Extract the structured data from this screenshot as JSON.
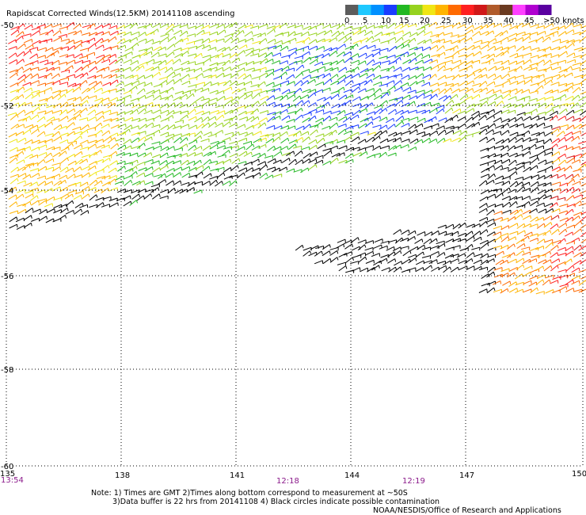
{
  "header": {
    "title": "Rapidscat Corrected Winds(12.5KM) 20141108 ascending"
  },
  "legend": {
    "unit_label": ">50 knots",
    "ticks": [
      "0",
      "5",
      "10",
      "15",
      "20",
      "25",
      "30",
      "35",
      "40",
      "45"
    ],
    "colors": [
      "#5c5c5c",
      "#1ec8ff",
      "#0090ff",
      "#1a3cff",
      "#22b822",
      "#96d21e",
      "#f0e614",
      "#ffb400",
      "#ff6a00",
      "#ff2020",
      "#d01818",
      "#b05a2a",
      "#6a3a20",
      "#ff40ff",
      "#b000d0",
      "#5a00a0"
    ]
  },
  "map": {
    "lat_labels": [
      "-50",
      "-52",
      "-54",
      "-56",
      "-58",
      "-60"
    ],
    "lon_labels": [
      "135",
      "138",
      "141",
      "144",
      "147",
      "150"
    ],
    "time_labels": [
      "13:54",
      "12:18",
      "12:19"
    ],
    "region_speeds_knots": {
      "northwest": 25,
      "north_central": 15,
      "central_blue": 10,
      "northeast": 22,
      "southeast": 28,
      "contaminated": 0
    }
  },
  "notes": {
    "line1": "Note: 1) Times are GMT 2)Times along bottom correspond to measurement at ~50S",
    "line2": "3)Data buffer is 22 hrs from 20141108 4) Black circles indicate possible contamination",
    "credit": "NOAA/NESDIS/Office of Research and Applications"
  }
}
